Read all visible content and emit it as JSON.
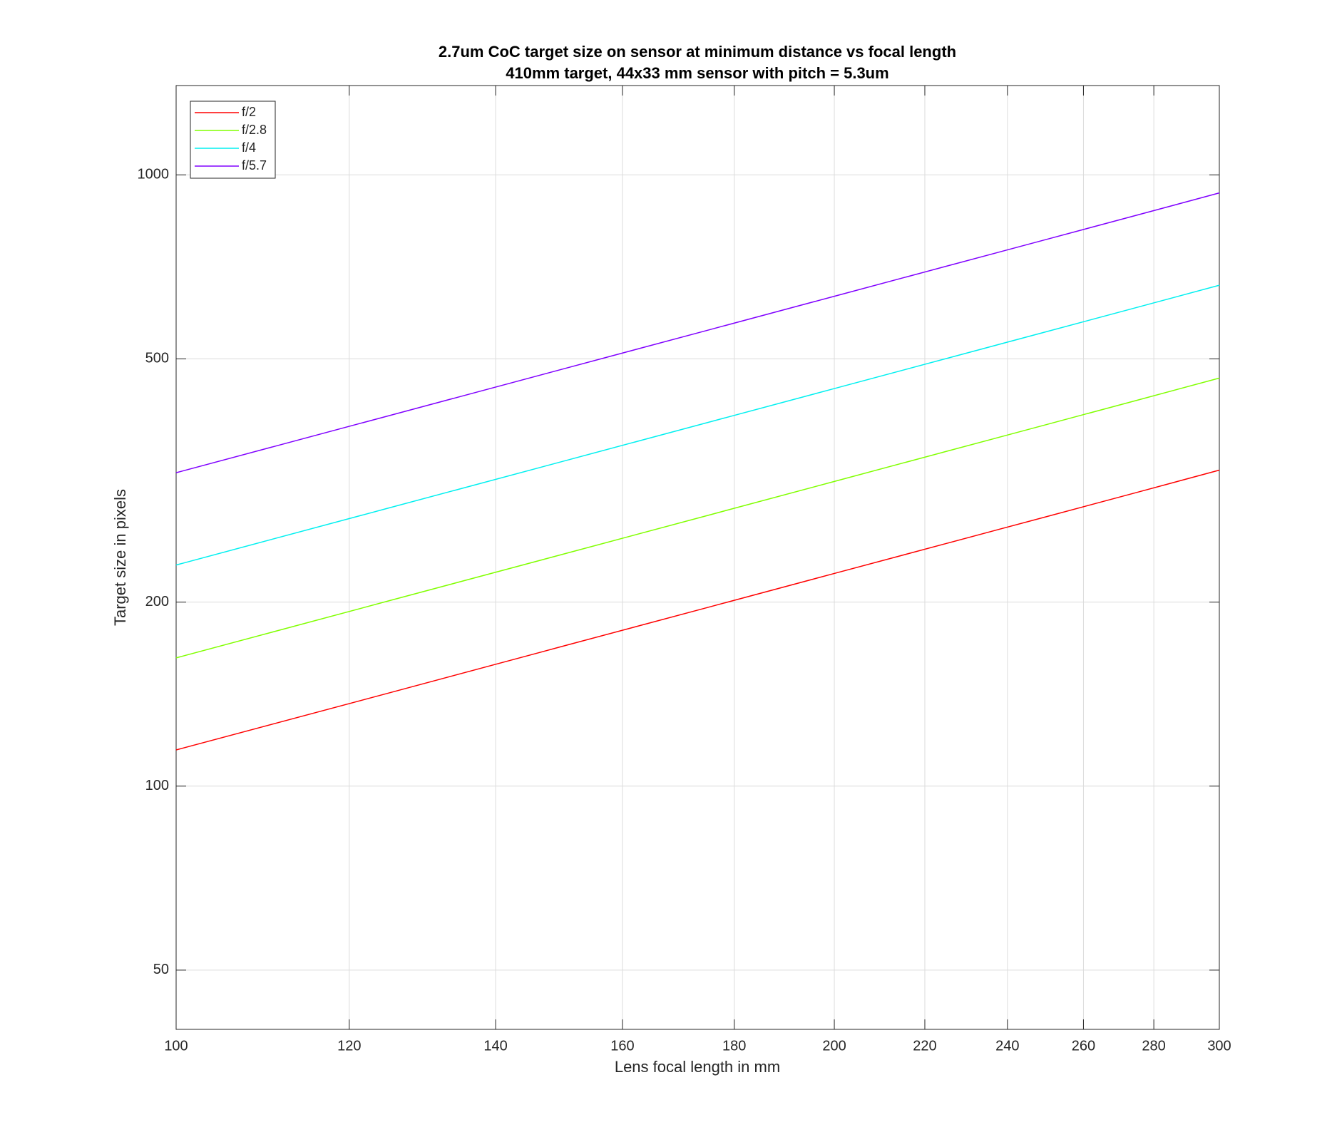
{
  "chart_data": {
    "type": "line",
    "title": "2.7um CoC target size on sensor at minimum distance vs focal length",
    "subtitle": "410mm target, 44x33 mm sensor with pitch = 5.3um",
    "x_label": "Lens focal length in mm",
    "y_label": "Target size in pixels",
    "x": [
      100,
      125,
      150,
      175,
      200,
      225,
      250,
      275,
      300
    ],
    "series": [
      {
        "name": "f/2",
        "color": "#ff0000",
        "values": [
          114.6,
          141.9,
          169.1,
          196.0,
          222.8,
          249.4,
          275.9,
          302.3,
          328.8
        ]
      },
      {
        "name": "f/2.8",
        "color": "#80ff00",
        "values": [
          162.1,
          200.8,
          239.1,
          277.2,
          315.1,
          352.8,
          390.3,
          427.7,
          465.1
        ]
      },
      {
        "name": "f/4",
        "color": "#00f0f0",
        "values": [
          230,
          284.9,
          339.3,
          393.4,
          447.1,
          500.6,
          553.8,
          606.8,
          659.9
        ]
      },
      {
        "name": "f/5.7",
        "color": "#8000ff",
        "values": [
          325.6,
          403.3,
          480.4,
          556.9,
          633.0,
          708.7,
          784.0,
          859.0,
          934.2
        ]
      }
    ],
    "xlim": [
      100,
      300
    ],
    "ylim": [
      40,
      1400
    ],
    "xticks": [
      100,
      120,
      140,
      160,
      180,
      200,
      220,
      240,
      260,
      280,
      300
    ],
    "yticks": [
      50,
      100,
      200,
      500,
      1000
    ],
    "xscale": "log",
    "yscale": "log",
    "grid": true,
    "legend": "upper left"
  }
}
